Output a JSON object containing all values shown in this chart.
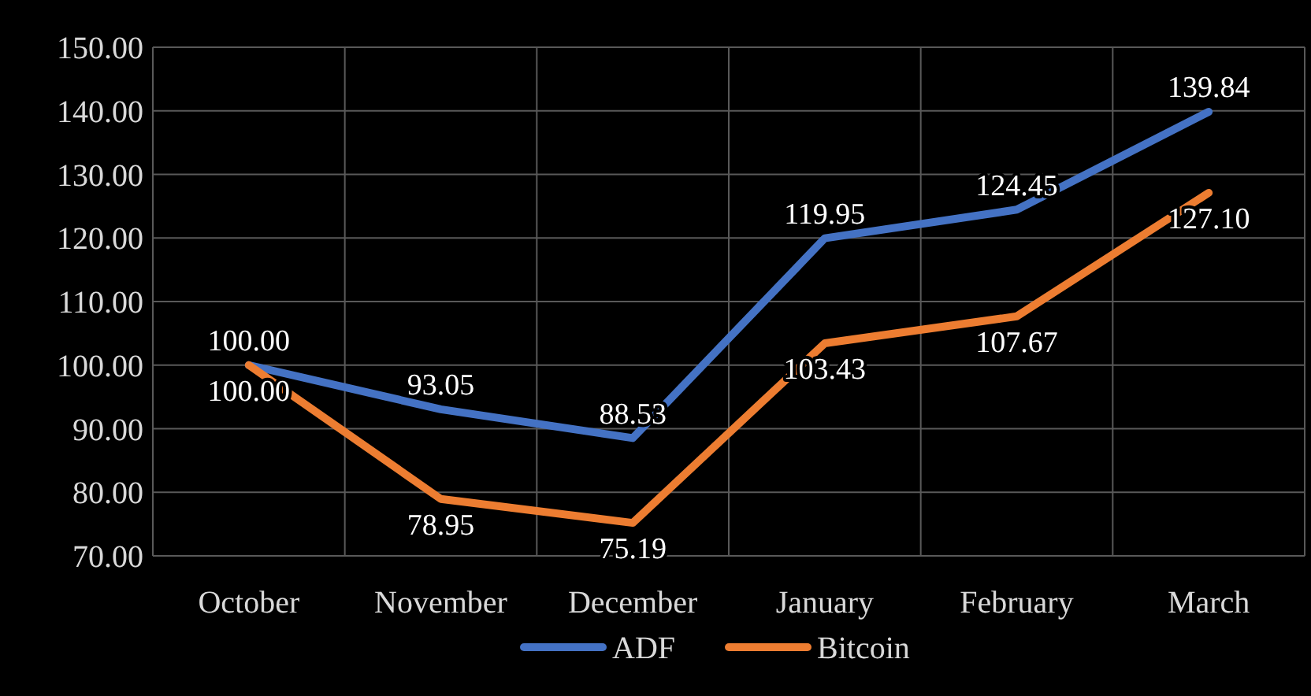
{
  "chart_data": {
    "type": "line",
    "categories": [
      "October",
      "November",
      "December",
      "January",
      "February",
      "March"
    ],
    "series": [
      {
        "name": "ADF",
        "color": "#4472c4",
        "values": [
          100.0,
          93.05,
          88.53,
          119.95,
          124.45,
          139.84
        ],
        "value_labels": [
          "100.00",
          "93.05",
          "88.53",
          "119.95",
          "124.45",
          "139.84"
        ]
      },
      {
        "name": "Bitcoin",
        "color": "#ed7d31",
        "values": [
          100.0,
          78.95,
          75.19,
          103.43,
          107.67,
          127.1
        ],
        "value_labels": [
          "100.00",
          "78.95",
          "75.19",
          "103.43",
          "107.67",
          "127.10"
        ]
      }
    ],
    "ylim": [
      70,
      150
    ],
    "yticks": [
      {
        "value": 70,
        "label": "70.00"
      },
      {
        "value": 80,
        "label": "80.00"
      },
      {
        "value": 90,
        "label": "90.00"
      },
      {
        "value": 100,
        "label": "100.00"
      },
      {
        "value": 110,
        "label": "110.00"
      },
      {
        "value": 120,
        "label": "120.00"
      },
      {
        "value": 130,
        "label": "130.00"
      },
      {
        "value": 140,
        "label": "140.00"
      },
      {
        "value": 150,
        "label": "150.00"
      }
    ],
    "grid": true,
    "legend": "bottom",
    "marker": "none",
    "line_style": "solid"
  }
}
